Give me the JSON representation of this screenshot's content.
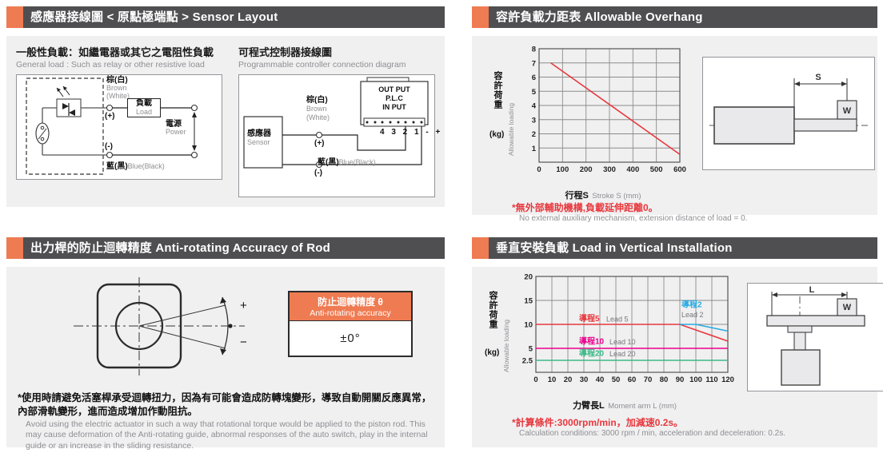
{
  "colors": {
    "accent_orange": "#ef7b52",
    "header_gray": "#4f4f51",
    "panel_bg": "#f0f0f1",
    "note_red": "#e8383d",
    "line_red": "#e8383d",
    "line_cyan": "#29abe2",
    "line_magenta": "#ec008c",
    "line_green": "#3db887"
  },
  "panels": {
    "sensor_layout": {
      "title_zh": "感應器接線圖 < 原點極端點 >",
      "title_en": "Sensor Layout",
      "general_load": {
        "title_zh": "一般性負載：如繼電器或其它之電阻性負載",
        "title_en": "General load : Such as relay or other resistive load",
        "labels": {
          "brown_zh": "棕(白)",
          "brown_en": "Brown",
          "brown_en2": "(White)",
          "plus": "(+)",
          "load_zh": "負載",
          "load_en": "Load",
          "power_zh": "電源",
          "power_en": "Power",
          "minus": "(-)",
          "blue_zh": "藍(黑)",
          "blue_en": "Blue(Black)"
        }
      },
      "plc": {
        "title_zh": "可程式控制器接線圖",
        "title_en": "Programmable controller connection diagram",
        "labels": {
          "sensor_zh": "感應器",
          "sensor_en": "Sensor",
          "brown_zh": "棕(白)",
          "brown_en": "Brown",
          "brown_en2": "(White)",
          "plus": "(+)",
          "blue_zh": "藍(黑)",
          "blue_en": "Blue(Black)",
          "minus": "(-)",
          "plc_out": "OUT PUT",
          "plc_name": "P.L.C",
          "plc_in": "IN PUT",
          "terminals": "4 3 2 1 - +"
        }
      }
    },
    "allowable_overhang": {
      "title_zh": "容許負載力距表",
      "title_en": "Allowable Overhang",
      "note_zh": "*無外部輔助機構,負載延伸距離0。",
      "note_en": "No external auxiliary mechanism, extension distance of load = 0.",
      "diagram_labels": {
        "s": "S",
        "w": "W"
      }
    },
    "anti_rotating": {
      "title_zh": "出力桿的防止迴轉精度",
      "title_en": "Anti-rotating Accuracy of Rod",
      "table": {
        "header_zh": "防止迴轉精度 θ",
        "header_en": "Anti-rotating accuracy",
        "value": "±0°"
      },
      "plus": "+",
      "minus": "−",
      "note_zh": "*使用時請避免活塞桿承受迴轉扭力，因為有可能會造成防轉塊變形，導致自動開關反應異常，內部滑軌變形，進而造成增加作動阻抗。",
      "note_en": "Avoid using the electric actuator in such a way that rotational torque would be applied to the piston rod. This may cause deformation of the Anti-rotating guide, abnormal responses of the auto switch, play in the internal guide or an increase in the sliding resistance."
    },
    "vertical_load": {
      "title_zh": "垂直安裝負載",
      "title_en": "Load in Vertical Installation",
      "note_zh": "*計算條件:3000rpm/min，加減速0.2s。",
      "note_en": "Calculation conditions: 3000 rpm / min, acceleration and deceleration: 0.2s.",
      "diagram_labels": {
        "l": "L",
        "w": "W"
      }
    }
  },
  "chart_data": [
    {
      "id": "allowable-overhang",
      "type": "line",
      "title": "Allowable Overhang",
      "xlabel_zh": "行程S",
      "xlabel_en": "Stroke S (mm)",
      "ylabel_zh": "容許荷重",
      "ylabel_kg": "(kg)",
      "ylabel_en": "Allowable loading",
      "xlim": [
        0,
        600
      ],
      "ylim": [
        0,
        8
      ],
      "xticks": [
        0,
        100,
        200,
        300,
        400,
        500,
        600
      ],
      "yticks": [
        1,
        2,
        3,
        4,
        5,
        6,
        7,
        8
      ],
      "grid": true,
      "legend": "none",
      "series": [
        {
          "name": "allowable-loading",
          "color": "#e8383d",
          "points": [
            [
              50,
              7
            ],
            [
              600,
              0.55
            ]
          ]
        }
      ]
    },
    {
      "id": "vertical-installation",
      "type": "line",
      "title": "Load in Vertical Installation",
      "xlabel_zh": "力臂長L",
      "xlabel_en": "Moment arm L (mm)",
      "ylabel_zh": "容許荷重",
      "ylabel_kg": "(kg)",
      "ylabel_en": "Allowable loading",
      "xlim": [
        0,
        120
      ],
      "ylim": [
        0,
        20
      ],
      "xticks": [
        0,
        10,
        20,
        30,
        40,
        50,
        60,
        70,
        80,
        90,
        100,
        110,
        120
      ],
      "yticks": [
        2.5,
        5,
        10,
        15,
        20
      ],
      "grid": true,
      "legend": "inline",
      "series": [
        {
          "name": "lead-5",
          "label_zh": "導程5",
          "label_en": "Lead 5",
          "color": "#e8383d",
          "points": [
            [
              0,
              10
            ],
            [
              90,
              10
            ],
            [
              120,
              6.5
            ]
          ],
          "label_zh_at": [
            27,
            10.7
          ],
          "label_en_at": [
            44,
            10.6
          ]
        },
        {
          "name": "lead-2",
          "label_zh": "導程2",
          "label_en": "Lead 2",
          "color": "#29abe2",
          "points": [
            [
              90,
              10
            ],
            [
              100,
              10
            ],
            [
              120,
              8.6
            ]
          ],
          "label_zh_at": [
            91,
            13.6
          ],
          "label_en_at": [
            91,
            11.5
          ]
        },
        {
          "name": "lead-10",
          "label_zh": "導程10",
          "label_en": "Lead 10",
          "color": "#ec008c",
          "points": [
            [
              0,
              5
            ],
            [
              120,
              5
            ]
          ],
          "label_zh_at": [
            27,
            5.9
          ],
          "label_en_at": [
            46,
            5.8
          ]
        },
        {
          "name": "lead-20",
          "label_zh": "導程20",
          "label_en": "Lead 20",
          "color": "#3db887",
          "points": [
            [
              0,
              2.5
            ],
            [
              120,
              2.5
            ]
          ],
          "label_zh_at": [
            27,
            3.4
          ],
          "label_en_at": [
            46,
            3.3
          ]
        }
      ]
    }
  ]
}
